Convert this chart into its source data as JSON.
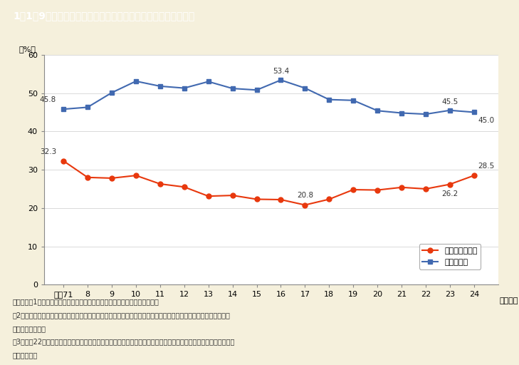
{
  "title": "1－1－9図　地方公務員採用試験合格者に占める女性割合の推移",
  "title_bg_color": "#8B7355",
  "title_text_color": "#FFFFFF",
  "background_color": "#F5F0DC",
  "plot_bg_color": "#FFFFFF",
  "years": [
    7,
    8,
    9,
    10,
    11,
    12,
    13,
    14,
    15,
    16,
    17,
    18,
    19,
    20,
    21,
    22,
    23,
    24
  ],
  "year_labels": [
    "平成71",
    "8",
    "9",
    "10",
    "11",
    "12",
    "13",
    "14",
    "15",
    "16",
    "17",
    "18",
    "19",
    "20",
    "21",
    "22",
    "23",
    "24"
  ],
  "pref_data": [
    32.3,
    28.0,
    27.8,
    28.5,
    26.3,
    25.5,
    23.1,
    23.3,
    22.3,
    22.2,
    20.8,
    22.3,
    24.8,
    24.7,
    25.4,
    25.0,
    26.2,
    28.5
  ],
  "city_data": [
    45.8,
    46.3,
    50.1,
    53.1,
    51.8,
    51.3,
    53.0,
    51.2,
    50.8,
    53.4,
    51.3,
    48.3,
    48.1,
    45.4,
    44.8,
    44.5,
    45.5,
    45.0
  ],
  "pref_color": "#E8380D",
  "city_color": "#4169B0",
  "pref_label": "都道府県合格者",
  "city_label": "市区合格者",
  "ylim": [
    0,
    60
  ],
  "yticks": [
    0,
    10,
    20,
    30,
    40,
    50,
    60
  ],
  "ylabel": "（%）",
  "xlabel_suffix": "（年度）",
  "note_line1": "（備考）　1．総務省「地方公共団体の勤務条件等に関する調査」より作成。",
  "note_line2": "　2．女性合格者，男性合格者のほか，申込書に性別記入欄を設けていない試験があることから性別不明の合格者が",
  "note_line3": "　　　存在する。",
  "note_line4": "　3．平成22年度は，東日本大震災の影響により調査が困難となった２団体（岩手県の１市１町）を除いて集計して",
  "note_line5": "　　　いる。"
}
